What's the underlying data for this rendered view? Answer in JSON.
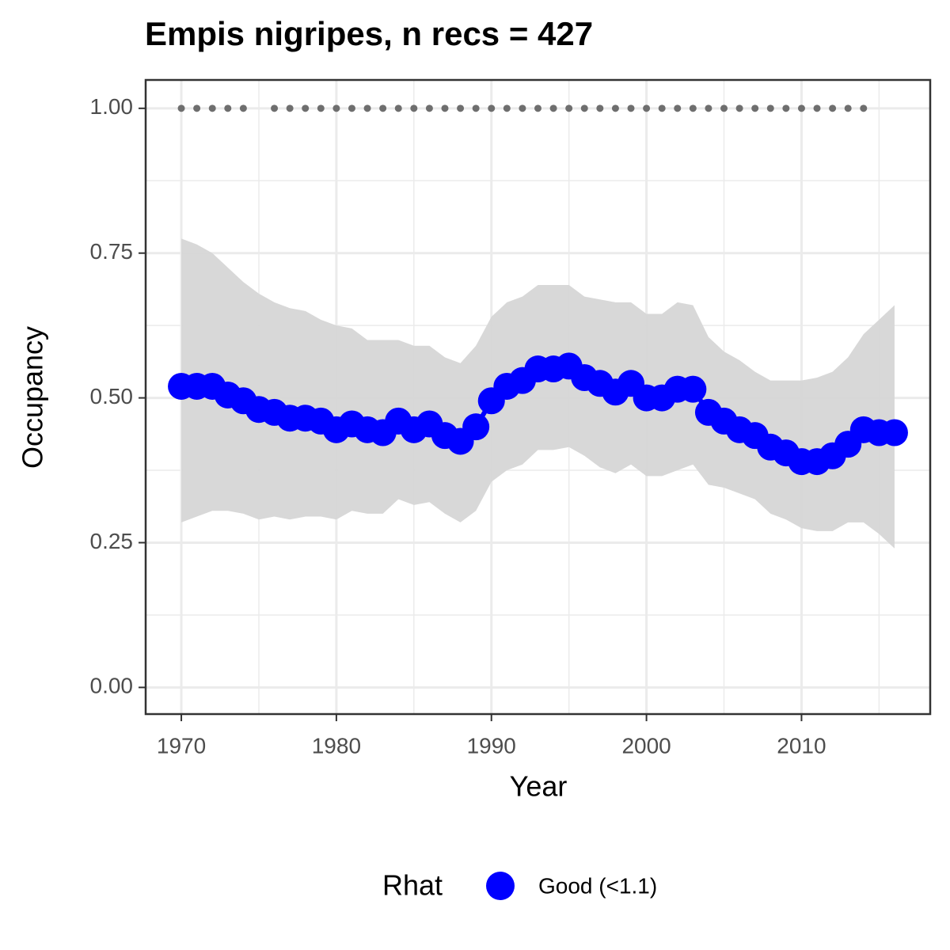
{
  "chart_data": {
    "type": "line",
    "title": "Empis nigripes, n recs = 427",
    "x_label": "Year",
    "y_label": "Occupancy",
    "legend_title": "Rhat",
    "x": [
      1970,
      1971,
      1972,
      1973,
      1974,
      1975,
      1976,
      1977,
      1978,
      1979,
      1980,
      1981,
      1982,
      1983,
      1984,
      1985,
      1986,
      1987,
      1988,
      1989,
      1990,
      1991,
      1992,
      1993,
      1994,
      1995,
      1996,
      1997,
      1998,
      1999,
      2000,
      2001,
      2002,
      2003,
      2004,
      2005,
      2006,
      2007,
      2008,
      2009,
      2010,
      2011,
      2012,
      2013,
      2014,
      2015,
      2016
    ],
    "series": [
      {
        "name": "Good (<1.1)",
        "color": "#0000ff",
        "values": [
          0.52,
          0.52,
          0.52,
          0.505,
          0.495,
          0.48,
          0.475,
          0.465,
          0.465,
          0.46,
          0.445,
          0.455,
          0.445,
          0.44,
          0.46,
          0.445,
          0.455,
          0.435,
          0.425,
          0.45,
          0.495,
          0.52,
          0.53,
          0.55,
          0.55,
          0.555,
          0.535,
          0.525,
          0.51,
          0.525,
          0.5,
          0.5,
          0.515,
          0.515,
          0.475,
          0.46,
          0.445,
          0.435,
          0.415,
          0.405,
          0.39,
          0.39,
          0.4,
          0.42,
          0.445,
          0.44,
          0.44
        ],
        "upper": [
          0.775,
          0.765,
          0.75,
          0.725,
          0.7,
          0.68,
          0.665,
          0.655,
          0.65,
          0.635,
          0.625,
          0.62,
          0.6,
          0.6,
          0.6,
          0.59,
          0.59,
          0.57,
          0.56,
          0.59,
          0.64,
          0.665,
          0.675,
          0.695,
          0.695,
          0.695,
          0.675,
          0.67,
          0.665,
          0.665,
          0.645,
          0.645,
          0.665,
          0.66,
          0.605,
          0.58,
          0.565,
          0.545,
          0.53,
          0.53,
          0.53,
          0.535,
          0.545,
          0.57,
          0.61,
          0.635,
          0.66
        ],
        "lower": [
          0.285,
          0.295,
          0.305,
          0.305,
          0.3,
          0.29,
          0.295,
          0.29,
          0.295,
          0.295,
          0.29,
          0.305,
          0.3,
          0.3,
          0.325,
          0.315,
          0.32,
          0.3,
          0.285,
          0.305,
          0.355,
          0.375,
          0.385,
          0.41,
          0.41,
          0.415,
          0.4,
          0.38,
          0.37,
          0.385,
          0.365,
          0.365,
          0.375,
          0.385,
          0.35,
          0.345,
          0.335,
          0.325,
          0.3,
          0.29,
          0.275,
          0.27,
          0.27,
          0.285,
          0.285,
          0.265,
          0.24
        ]
      }
    ],
    "band_color": "#d6d6d6",
    "records": {
      "color": "#6e6e6e",
      "x": [
        1970,
        1971,
        1972,
        1973,
        1974,
        1976,
        1977,
        1978,
        1979,
        1980,
        1981,
        1982,
        1983,
        1984,
        1985,
        1986,
        1987,
        1988,
        1989,
        1990,
        1991,
        1992,
        1993,
        1994,
        1995,
        1996,
        1997,
        1998,
        1999,
        2000,
        2001,
        2002,
        2003,
        2004,
        2005,
        2006,
        2007,
        2008,
        2009,
        2010,
        2011,
        2012,
        2013,
        2014
      ],
      "values": [
        1,
        1,
        1,
        1,
        1,
        1,
        1,
        1,
        1,
        1,
        1,
        1,
        1,
        1,
        1,
        1,
        1,
        1,
        1,
        1,
        1,
        1,
        1,
        1,
        1,
        1,
        1,
        1,
        1,
        1,
        1,
        1,
        1,
        1,
        1,
        1,
        1,
        1,
        1,
        1,
        1,
        1,
        1,
        1
      ]
    },
    "xlim": [
      1967.7,
      2018.3
    ],
    "ylim": [
      -0.046,
      1.049
    ],
    "xticks": [
      1970,
      1980,
      1990,
      2000,
      2010
    ],
    "yticks": [
      {
        "value": 0,
        "label": "0.00"
      },
      {
        "value": 0.25,
        "label": "0.25"
      },
      {
        "value": 0.5,
        "label": "0.50"
      },
      {
        "value": 0.75,
        "label": "0.75"
      },
      {
        "value": 1,
        "label": "1.00"
      }
    ],
    "minor_xticks": [
      1975,
      1985,
      1995,
      2005,
      2015
    ],
    "minor_yticks": [
      0.125,
      0.375,
      0.625,
      0.875
    ],
    "grid": true
  }
}
